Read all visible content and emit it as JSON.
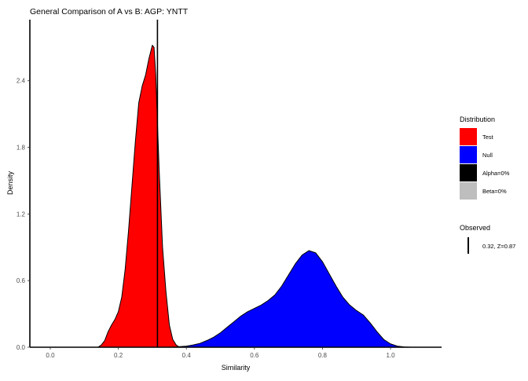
{
  "chart_data": {
    "type": "area",
    "title": "General Comparison of A vs B: AGP: YNTT",
    "xlabel": "Similarity",
    "ylabel": "Density",
    "xlim": [
      -0.06,
      1.15
    ],
    "ylim": [
      0,
      2.95
    ],
    "x_ticks": [
      "0.0",
      "0.2",
      "0.4",
      "0.6",
      "0.8",
      "1.0"
    ],
    "x_tick_values": [
      0.0,
      0.2,
      0.4,
      0.6,
      0.8,
      1.0
    ],
    "y_ticks": [
      "0.0",
      "0.6",
      "1.2",
      "1.8",
      "2.4"
    ],
    "y_tick_values": [
      0.0,
      0.6,
      1.2,
      1.8,
      2.4
    ],
    "grid": false,
    "legend_position": "right",
    "legend": {
      "title": "Distribution",
      "entries": [
        {
          "label": "Test",
          "color": "#ff0000"
        },
        {
          "label": "Null",
          "color": "#0000ff"
        },
        {
          "label": "Alpha=0%",
          "color": "#000000"
        },
        {
          "label": "Beta=0%",
          "color": "#bebebe"
        }
      ]
    },
    "observed_legend": {
      "title": "Observed",
      "label": "0.32, Z=0.87"
    },
    "observed_line": {
      "x": 0.315
    },
    "series": [
      {
        "name": "Test",
        "color": "#ff0000",
        "x": [
          0.14,
          0.15,
          0.16,
          0.17,
          0.18,
          0.19,
          0.2,
          0.21,
          0.22,
          0.23,
          0.24,
          0.25,
          0.26,
          0.27,
          0.28,
          0.29,
          0.3,
          0.305,
          0.31,
          0.32,
          0.33,
          0.34,
          0.35,
          0.36,
          0.37,
          0.38
        ],
        "values": [
          0.0,
          0.02,
          0.06,
          0.14,
          0.2,
          0.25,
          0.32,
          0.45,
          0.7,
          1.05,
          1.45,
          1.85,
          2.2,
          2.35,
          2.45,
          2.6,
          2.72,
          2.7,
          2.45,
          1.6,
          0.9,
          0.5,
          0.2,
          0.07,
          0.02,
          0.0
        ]
      },
      {
        "name": "Null",
        "color": "#0000ff",
        "x": [
          0.36,
          0.38,
          0.4,
          0.42,
          0.44,
          0.46,
          0.48,
          0.5,
          0.52,
          0.54,
          0.56,
          0.58,
          0.6,
          0.62,
          0.64,
          0.66,
          0.68,
          0.7,
          0.72,
          0.74,
          0.76,
          0.78,
          0.8,
          0.82,
          0.84,
          0.86,
          0.88,
          0.9,
          0.92,
          0.94,
          0.96,
          0.98,
          1.0,
          1.02,
          1.04,
          1.06
        ],
        "values": [
          0.0,
          0.005,
          0.01,
          0.02,
          0.035,
          0.06,
          0.09,
          0.13,
          0.18,
          0.23,
          0.28,
          0.32,
          0.35,
          0.38,
          0.42,
          0.47,
          0.55,
          0.65,
          0.75,
          0.83,
          0.87,
          0.85,
          0.77,
          0.66,
          0.55,
          0.45,
          0.38,
          0.33,
          0.29,
          0.22,
          0.14,
          0.07,
          0.03,
          0.01,
          0.003,
          0.0
        ]
      }
    ]
  }
}
